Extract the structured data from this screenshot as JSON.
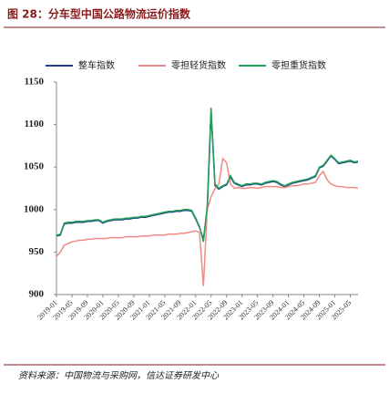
{
  "chart_data": {
    "type": "line",
    "title": "图 28：分车型中国公路物流运价指数",
    "source": "资料来源：中国物流与采购网，信达证券研发中心",
    "categories": [
      "2019-01",
      null,
      null,
      null,
      "2019-05",
      null,
      null,
      null,
      "2019-09",
      null,
      null,
      null,
      "2020-01",
      null,
      null,
      null,
      "2020-05",
      null,
      null,
      null,
      "2020-09",
      null,
      null,
      null,
      "2021-01",
      null,
      null,
      null,
      "2021-05",
      null,
      null,
      null,
      "2021-09",
      null,
      null,
      null,
      "2022-01",
      null,
      null,
      null,
      "2022-05",
      null,
      null,
      null,
      "2022-09",
      null,
      null,
      null,
      "2023-01",
      null,
      null,
      null,
      "2023-05",
      null,
      null,
      null,
      "2023-09",
      null,
      null,
      null,
      "2024-01",
      null,
      null,
      null,
      "2024-05",
      null,
      null,
      null,
      "2024-09",
      null,
      null,
      null,
      "2025-01",
      null,
      null,
      null,
      "2025-05",
      null,
      null
    ],
    "series": [
      {
        "name": "整车指数",
        "color": "#1f3f8a",
        "values": [
          969,
          970,
          983,
          984,
          984,
          985,
          985,
          985,
          986,
          986,
          987,
          987,
          984,
          986,
          987,
          988,
          988,
          988,
          989,
          989,
          990,
          990,
          991,
          991,
          992,
          993,
          994,
          995,
          996,
          997,
          997,
          998,
          998,
          999,
          999,
          998,
          989,
          979,
          965,
          1000,
          1115,
          1028,
          1024,
          1027,
          1029,
          1038,
          1031,
          1029,
          1027,
          1029,
          1029,
          1030,
          1030,
          1029,
          1031,
          1032,
          1033,
          1032,
          1029,
          1027,
          1029,
          1031,
          1032,
          1033,
          1034,
          1035,
          1037,
          1039,
          1049,
          1051,
          1057,
          1063,
          1059,
          1054,
          1055,
          1056,
          1057,
          1055,
          1056
        ]
      },
      {
        "name": "零担轻货指数",
        "color": "#f08a84",
        "values": [
          945,
          950,
          958,
          960,
          962,
          963,
          964,
          964,
          965,
          965,
          966,
          966,
          966,
          966,
          967,
          967,
          967,
          967,
          968,
          968,
          968,
          968,
          969,
          969,
          969,
          970,
          970,
          970,
          970,
          971,
          971,
          971,
          972,
          972,
          973,
          974,
          975,
          973,
          910,
          1000,
          1015,
          1025,
          1030,
          1060,
          1055,
          1030,
          1025,
          1026,
          1025,
          1025,
          1026,
          1026,
          1025,
          1026,
          1027,
          1027,
          1027,
          1027,
          1026,
          1026,
          1027,
          1028,
          1028,
          1029,
          1030,
          1030,
          1031,
          1032,
          1040,
          1045,
          1035,
          1030,
          1028,
          1027,
          1027,
          1026,
          1026,
          1026,
          1025
        ]
      },
      {
        "name": "零担重货指数",
        "color": "#22a05a",
        "values": [
          970,
          971,
          984,
          985,
          985,
          986,
          986,
          986,
          987,
          987,
          988,
          988,
          985,
          987,
          988,
          989,
          989,
          989,
          990,
          990,
          991,
          991,
          992,
          992,
          993,
          994,
          995,
          996,
          997,
          998,
          998,
          999,
          999,
          1000,
          1000,
          999,
          990,
          980,
          962,
          1005,
          1120,
          1030,
          1025,
          1028,
          1030,
          1040,
          1032,
          1030,
          1028,
          1030,
          1030,
          1031,
          1031,
          1030,
          1032,
          1033,
          1034,
          1033,
          1030,
          1028,
          1030,
          1032,
          1033,
          1034,
          1035,
          1036,
          1038,
          1040,
          1050,
          1052,
          1058,
          1064,
          1060,
          1055,
          1056,
          1057,
          1058,
          1056,
          1057
        ]
      }
    ],
    "ylim": [
      900,
      1150
    ],
    "yticks": [
      900,
      950,
      1000,
      1050,
      1100,
      1150
    ]
  }
}
